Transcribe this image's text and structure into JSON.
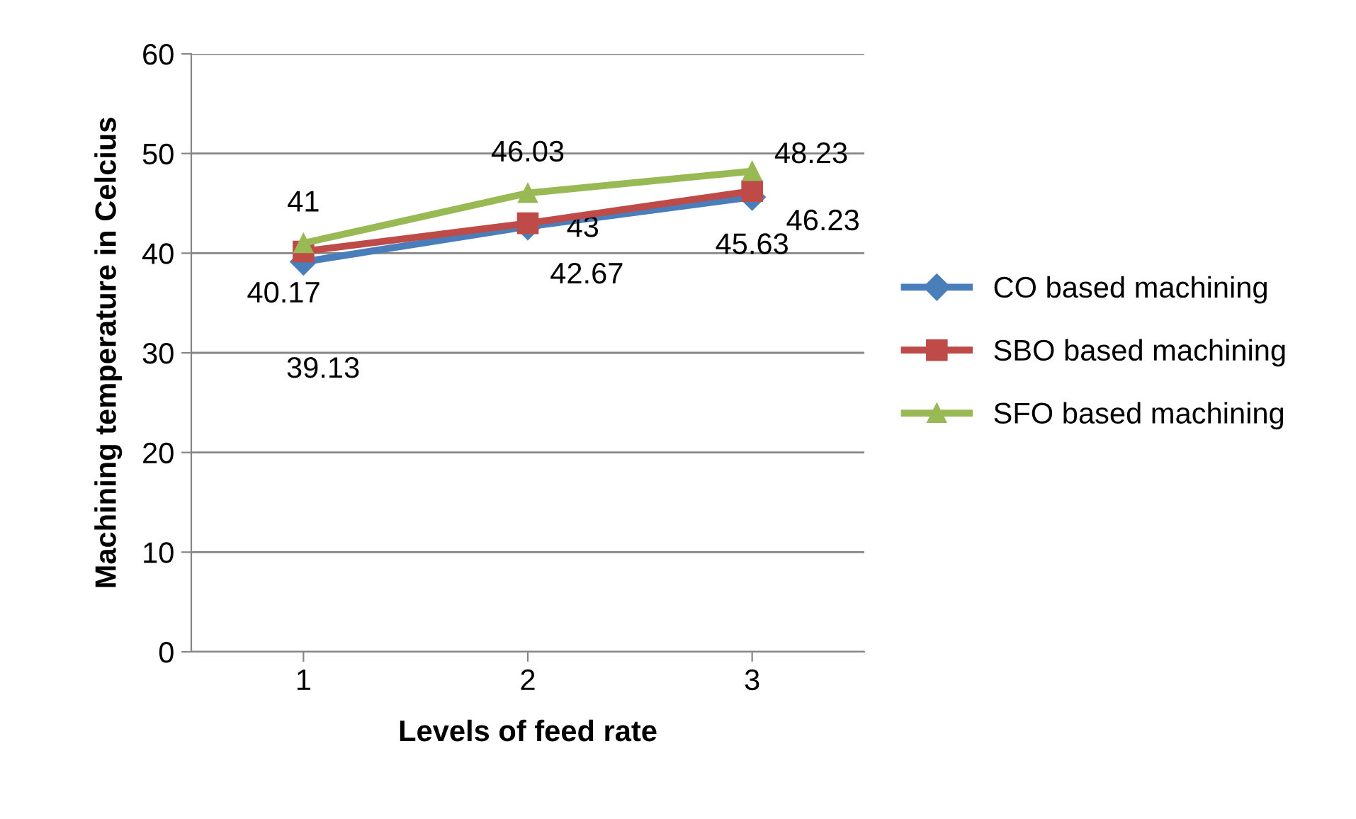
{
  "chart_data": {
    "type": "line",
    "xlabel": "Levels of feed rate",
    "ylabel": "Machining temperature in Celcius",
    "categories": [
      "1",
      "2",
      "3"
    ],
    "series": [
      {
        "name": "CO based machining",
        "color": "#4a7ebb",
        "marker": "diamond",
        "values": [
          39.13,
          42.67,
          45.63
        ]
      },
      {
        "name": "SBO based machining",
        "color": "#be4b48",
        "marker": "square",
        "values": [
          40.17,
          43,
          46.23
        ]
      },
      {
        "name": "SFO based machining",
        "color": "#98b954",
        "marker": "triangle",
        "values": [
          41,
          46.03,
          48.23
        ]
      }
    ],
    "ylim": [
      0,
      60
    ],
    "yticks": [
      0,
      10,
      20,
      30,
      40,
      50,
      60
    ],
    "grid": "y",
    "legend": "right",
    "data_labels": true,
    "line_style": "solid"
  }
}
